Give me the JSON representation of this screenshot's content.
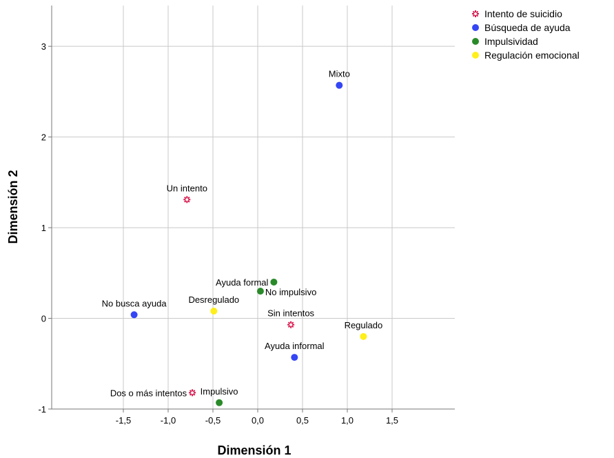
{
  "chart_data": {
    "type": "scatter",
    "xlabel": "Dimensión 1",
    "ylabel": "Dimensión 2",
    "xlim": [
      -2.3,
      2.2
    ],
    "ylim": [
      -1.0,
      3.45
    ],
    "x_ticks": [
      -1.5,
      -1.0,
      -0.5,
      0.0,
      0.5,
      1.0,
      1.5
    ],
    "x_tick_labels": [
      "-1,5",
      "-1,0",
      "-0,5",
      "0,0",
      "0,5",
      "1,0",
      "1,5"
    ],
    "y_ticks": [
      -1,
      0,
      1,
      2,
      3
    ],
    "y_tick_labels": [
      "-1",
      "0",
      "1",
      "2",
      "3"
    ],
    "grid": true,
    "legend_position": "top-right",
    "series": [
      {
        "name": "Intento de suicidio",
        "color": "#d6154a",
        "marker": "asterisk",
        "points": [
          {
            "label": "Un intento",
            "x": -0.79,
            "y": 1.31,
            "label_pos": "above"
          },
          {
            "label": "Sin intentos",
            "x": 0.37,
            "y": -0.07,
            "label_pos": "above"
          },
          {
            "label": "Dos o más intentos",
            "x": -0.73,
            "y": -0.82,
            "label_pos": "left"
          }
        ]
      },
      {
        "name": "Búsqueda de ayuda",
        "color": "#3546f5",
        "marker": "circle",
        "points": [
          {
            "label": "Mixto",
            "x": 0.91,
            "y": 2.57,
            "label_pos": "above"
          },
          {
            "label": "No busca ayuda",
            "x": -1.38,
            "y": 0.04,
            "label_pos": "above"
          },
          {
            "label": "Ayuda informal",
            "x": 0.41,
            "y": -0.43,
            "label_pos": "above"
          }
        ]
      },
      {
        "name": "Impulsividad",
        "color": "#2a8a2a",
        "marker": "circle",
        "points": [
          {
            "label": "Ayuda formal",
            "x": 0.18,
            "y": 0.4,
            "label_pos": "left"
          },
          {
            "label": "No impulsivo",
            "x": 0.03,
            "y": 0.3,
            "label_pos": "right"
          },
          {
            "label": "Impulsivo",
            "x": -0.43,
            "y": -0.93,
            "label_pos": "above"
          }
        ]
      },
      {
        "name": "Regulación emocional",
        "color": "#ffef1a",
        "marker": "circle",
        "points": [
          {
            "label": "Desregulado",
            "x": -0.49,
            "y": 0.08,
            "label_pos": "above"
          },
          {
            "label": "Regulado",
            "x": 1.18,
            "y": -0.2,
            "label_pos": "above"
          }
        ]
      }
    ]
  }
}
